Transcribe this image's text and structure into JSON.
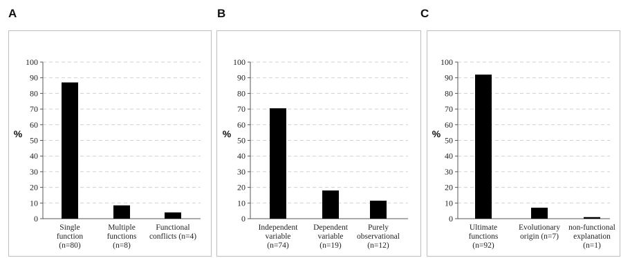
{
  "chart_data": [
    {
      "panel_label": "A",
      "type": "bar",
      "ylabel": "%",
      "ylim": [
        0,
        100
      ],
      "yticks": [
        "0",
        "10",
        "20",
        "30",
        "40",
        "50",
        "60",
        "70",
        "80",
        "90",
        "100"
      ],
      "grid": "horizontal-dashed",
      "categories": [
        [
          "Single",
          "function",
          "(n=80)"
        ],
        [
          "Multiple",
          "functions",
          "(n=8)"
        ],
        [
          "Functional",
          "conflicts (n=4)"
        ]
      ],
      "values": [
        87,
        8.5,
        4
      ],
      "bar_color": "#000000"
    },
    {
      "panel_label": "B",
      "type": "bar",
      "ylabel": "%",
      "ylim": [
        0,
        100
      ],
      "yticks": [
        "0",
        "10",
        "20",
        "30",
        "40",
        "50",
        "60",
        "70",
        "80",
        "90",
        "100"
      ],
      "grid": "horizontal-dashed",
      "categories": [
        [
          "Independent",
          "variable",
          "(n=74)"
        ],
        [
          "Dependent",
          "variable",
          "(n=19)"
        ],
        [
          "Purely",
          "observational",
          "(n=12)"
        ]
      ],
      "values": [
        70.5,
        18,
        11.5
      ],
      "bar_color": "#000000"
    },
    {
      "panel_label": "C",
      "type": "bar",
      "ylabel": "%",
      "ylim": [
        0,
        100
      ],
      "yticks": [
        "0",
        "10",
        "20",
        "30",
        "40",
        "50",
        "60",
        "70",
        "80",
        "90",
        "100"
      ],
      "grid": "horizontal-dashed",
      "categories": [
        [
          "Ultimate",
          "functions",
          "(n=92)"
        ],
        [
          "Evolutionary",
          "origin (n=7)"
        ],
        [
          "non-functional",
          "explanation",
          "(n=1)"
        ]
      ],
      "values": [
        92,
        7,
        1
      ],
      "bar_color": "#000000"
    }
  ]
}
